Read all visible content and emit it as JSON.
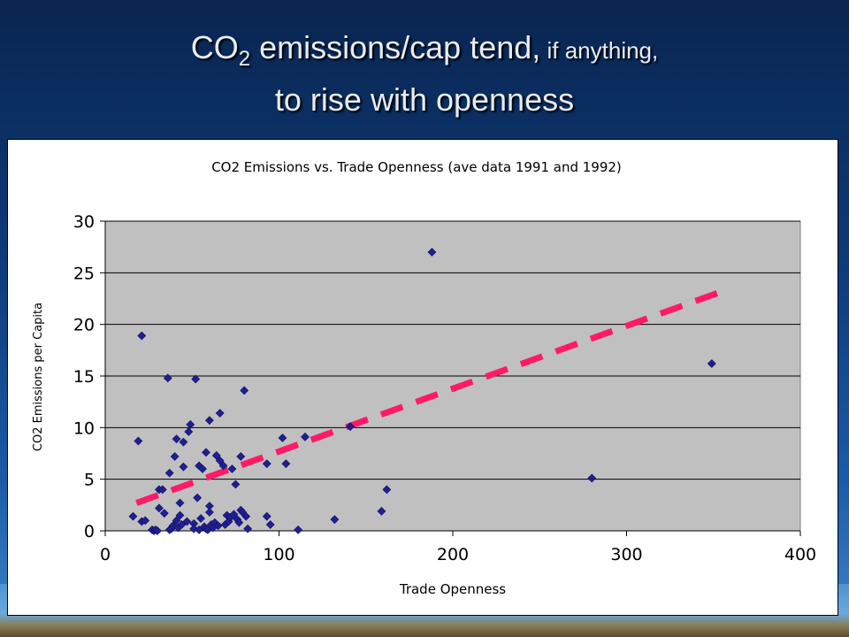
{
  "slide": {
    "title_part1": "CO",
    "title_sub": "2",
    "title_part2": " emissions/cap tend,",
    "title_part3": " if anything,",
    "title_line2": "to rise with openness"
  },
  "colors": {
    "background_top": "#0a2550",
    "plot_area": "#c0c0c0",
    "marker": "#1f1f8f",
    "trendline": "#ff1a66"
  },
  "chart_data": {
    "type": "scatter",
    "title": "CO2 Emissions vs. Trade Openness (ave data 1991 and 1992)",
    "xlabel": "Trade Openness",
    "ylabel": "CO2 Emissions per Capita",
    "xlim": [
      0,
      400
    ],
    "ylim": [
      0,
      30
    ],
    "xticks": [
      0,
      100,
      200,
      300,
      400
    ],
    "yticks": [
      0,
      5,
      10,
      15,
      20,
      25,
      30
    ],
    "grid": "horizontal",
    "marker": "diamond",
    "trendline": {
      "style": "dashed",
      "from": [
        18,
        2.7
      ],
      "to": [
        355,
        23.2
      ]
    },
    "points": [
      [
        16,
        1.4
      ],
      [
        19,
        8.7
      ],
      [
        21,
        18.9
      ],
      [
        21,
        0.9
      ],
      [
        23,
        1.0
      ],
      [
        27,
        0.1
      ],
      [
        28,
        0.0
      ],
      [
        29,
        0.1
      ],
      [
        30,
        0.0
      ],
      [
        31,
        2.2
      ],
      [
        31,
        4.0
      ],
      [
        33,
        4.0
      ],
      [
        34,
        1.7
      ],
      [
        36,
        14.8
      ],
      [
        37,
        5.6
      ],
      [
        37,
        0.1
      ],
      [
        38,
        0.2
      ],
      [
        39,
        0.5
      ],
      [
        40,
        7.2
      ],
      [
        41,
        1.0
      ],
      [
        41,
        8.9
      ],
      [
        42,
        0.3
      ],
      [
        43,
        2.7
      ],
      [
        43,
        1.5
      ],
      [
        44,
        0.6
      ],
      [
        45,
        8.6
      ],
      [
        45,
        6.2
      ],
      [
        47,
        0.9
      ],
      [
        48,
        9.6
      ],
      [
        49,
        10.3
      ],
      [
        51,
        0.7
      ],
      [
        51,
        0.2
      ],
      [
        52,
        14.7
      ],
      [
        53,
        3.2
      ],
      [
        54,
        0.1
      ],
      [
        54,
        6.3
      ],
      [
        55,
        1.2
      ],
      [
        56,
        6.0
      ],
      [
        57,
        0.4
      ],
      [
        58,
        7.6
      ],
      [
        58,
        0.2
      ],
      [
        59,
        0.1
      ],
      [
        60,
        2.4
      ],
      [
        60,
        10.7
      ],
      [
        60,
        1.8
      ],
      [
        61,
        0.6
      ],
      [
        62,
        0.3
      ],
      [
        63,
        0.8
      ],
      [
        64,
        7.3
      ],
      [
        65,
        0.5
      ],
      [
        66,
        6.8
      ],
      [
        66,
        11.4
      ],
      [
        68,
        6.3
      ],
      [
        69,
        0.6
      ],
      [
        70,
        1.5
      ],
      [
        71,
        0.9
      ],
      [
        72,
        1.3
      ],
      [
        73,
        6.0
      ],
      [
        74,
        1.6
      ],
      [
        75,
        4.5
      ],
      [
        76,
        1.1
      ],
      [
        77,
        0.8
      ],
      [
        78,
        2.0
      ],
      [
        78,
        7.2
      ],
      [
        79,
        1.8
      ],
      [
        80,
        13.6
      ],
      [
        81,
        1.4
      ],
      [
        82,
        0.2
      ],
      [
        93,
        6.5
      ],
      [
        93,
        1.4
      ],
      [
        95,
        0.6
      ],
      [
        102,
        9.0
      ],
      [
        104,
        6.5
      ],
      [
        111,
        0.1
      ],
      [
        115,
        9.1
      ],
      [
        132,
        1.1
      ],
      [
        141,
        10.1
      ],
      [
        159,
        1.9
      ],
      [
        162,
        4.0
      ],
      [
        188,
        27.0
      ],
      [
        280,
        5.1
      ],
      [
        349,
        16.2
      ]
    ]
  }
}
